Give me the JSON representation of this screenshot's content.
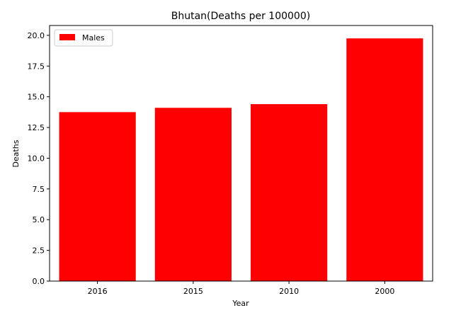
{
  "chart_data": {
    "type": "bar",
    "title": "Bhutan(Deaths per 100000)",
    "xlabel": "Year",
    "ylabel": "Deaths",
    "categories": [
      "2016",
      "2015",
      "2010",
      "2000"
    ],
    "series": [
      {
        "name": "Males",
        "values": [
          13.75,
          14.1,
          14.4,
          19.75
        ],
        "color": "#ff0000"
      }
    ],
    "ylim": [
      0,
      20.8
    ],
    "yticks": [
      0.0,
      2.5,
      5.0,
      7.5,
      10.0,
      12.5,
      15.0,
      17.5,
      20.0
    ],
    "ytick_labels": [
      "0.0",
      "2.5",
      "5.0",
      "7.5",
      "10.0",
      "12.5",
      "15.0",
      "17.5",
      "20.0"
    ],
    "grid": false,
    "legend_position": "top-left"
  }
}
